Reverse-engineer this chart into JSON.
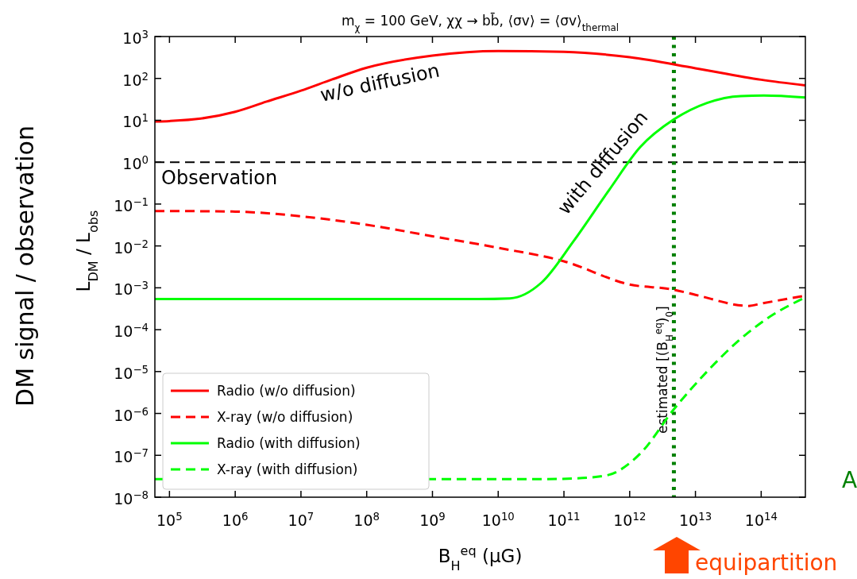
{
  "chart_data": {
    "type": "line",
    "title": "m$_{χ}$ = 100 GeV, χχ → bb̄, ⟨σv⟩ = ⟨σv⟩$_{thermal}$",
    "xlabel": "B$_{H}$$^{eq}$ (μG)",
    "ylabel": "L$_{DM}$ / L$_{obs}$",
    "log": "xy",
    "grid": false,
    "legend": "bottom left",
    "xlim": [
      60000,
      470000000000000
    ],
    "ylim": [
      1e-08,
      1000
    ],
    "xticks": [
      {
        "value": 100000.0,
        "label": "10$^{5}$"
      },
      {
        "value": 1000000.0,
        "label": "10$^{6}$"
      },
      {
        "value": 10000000.0,
        "label": "10$^{7}$"
      },
      {
        "value": 100000000.0,
        "label": "10$^{8}$"
      },
      {
        "value": 1000000000.0,
        "label": "10$^{9}$"
      },
      {
        "value": 10000000000.0,
        "label": "10$^{10}$"
      },
      {
        "value": 100000000000.0,
        "label": "10$^{11}$"
      },
      {
        "value": 1000000000000.0,
        "label": "10$^{12}$"
      },
      {
        "value": 10000000000000.0,
        "label": "10$^{13}$"
      },
      {
        "value": 100000000000000.0,
        "label": "10$^{14}$"
      }
    ],
    "yticks": [
      {
        "value": 1e-08,
        "label": "10$^{−8}$"
      },
      {
        "value": 1e-07,
        "label": "10$^{−7}$"
      },
      {
        "value": 1e-06,
        "label": "10$^{−6}$"
      },
      {
        "value": 1e-05,
        "label": "10$^{−5}$"
      },
      {
        "value": 0.0001,
        "label": "10$^{−4}$"
      },
      {
        "value": 0.001,
        "label": "10$^{−3}$"
      },
      {
        "value": 0.01,
        "label": "10$^{−2}$"
      },
      {
        "value": 0.1,
        "label": "10$^{−1}$"
      },
      {
        "value": 1,
        "label": "10$^{0}$"
      },
      {
        "value": 10,
        "label": "10$^{1}$"
      },
      {
        "value": 100,
        "label": "10$^{2}$"
      },
      {
        "value": 1000,
        "label": "10$^{3}$"
      }
    ],
    "series": [
      {
        "name": "Radio (w/o diffusion)",
        "color": "#ff0000",
        "line_style": "solid",
        "x": [
          60000.0,
          100000.0,
          300000.0,
          1000000.0,
          3000000.0,
          10000000.0,
          30000000.0,
          100000000.0,
          1000000000.0,
          10000000000.0,
          100000000000.0,
          1000000000000.0,
          10000000000000.0,
          100000000000000.0,
          470000000000000.0
        ],
        "values": [
          9.3,
          9.6,
          11,
          16,
          28,
          51,
          95,
          180,
          350,
          450,
          430,
          320,
          175,
          93,
          68
        ]
      },
      {
        "name": "X-ray (w/o diffusion)",
        "color": "#ff0000",
        "line_style": "dashed",
        "x": [
          60000.0,
          100000.0,
          1000000.0,
          10000000.0,
          100000000.0,
          1000000000.0,
          10000000000.0,
          100000000000.0,
          1000000000000.0,
          4700000000000.0,
          10000000000000.0,
          65000000000000.0,
          100000000000000.0,
          470000000000000.0
        ],
        "values": [
          0.068,
          0.068,
          0.066,
          0.051,
          0.032,
          0.017,
          0.009,
          0.0043,
          0.0012,
          0.0009,
          0.00068,
          0.00037,
          0.00042,
          0.00065
        ]
      },
      {
        "name": "Radio (with diffusion)",
        "color": "#00ff00",
        "line_style": "solid",
        "x": [
          60000.0,
          4900000000.0,
          15000000000.0,
          46000000000.0,
          140000000000.0,
          490000000000.0,
          1450000000000.0,
          4700000000000.0,
          15000000000000.0,
          49000000000000.0,
          110000000000000.0,
          470000000000000.0
        ],
        "values": [
          0.00054,
          0.00054,
          0.00056,
          0.00135,
          0.013,
          0.22,
          2.3,
          10.5,
          26,
          38,
          39,
          35
        ]
      },
      {
        "name": "X-ray (with diffusion)",
        "color": "#00ff00",
        "line_style": "dashed",
        "x": [
          60000.0,
          50000000000.0,
          140000000000.0,
          440000000000.0,
          1450000000000.0,
          4700000000000.0,
          15000000000000.0,
          45000000000000.0,
          120000000000000.0,
          470000000000000.0
        ],
        "values": [
          2.7e-08,
          2.7e-08,
          2.8e-08,
          3.3e-08,
          1.1e-07,
          1.26e-06,
          1e-05,
          5.4e-05,
          0.00018,
          0.00059
        ]
      }
    ],
    "ref_lines": [
      {
        "axis": "y",
        "value": 1,
        "label": "Observation",
        "color": "#000000",
        "line_style": "dashed"
      },
      {
        "axis": "x",
        "value": 4700000000000.0,
        "label": "estimated [(B$_{H}$$^{eq}$)$_{0}$]",
        "color": "#008000",
        "line_style": "dotted"
      }
    ],
    "annotations": [
      "w/o diffusion",
      "with diffusion",
      "DM signal / observation",
      "equipartition",
      "A"
    ]
  }
}
